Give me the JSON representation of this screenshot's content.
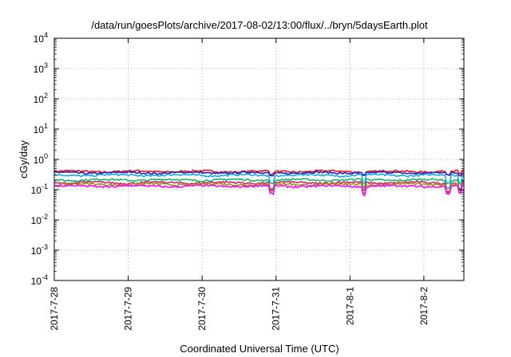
{
  "chart_data": {
    "type": "line",
    "title": "/data/run/goesPlots/archive/2017-08-02/13:00/flux/../bryn/5daysEarth.plot",
    "xlabel": "Coordinated Universal Time (UTC)",
    "ylabel": "cGy/day",
    "yscale": "log",
    "ylim": [
      0.0001,
      10000
    ],
    "y_ticks": [
      {
        "value": 0.0001,
        "base": "10",
        "exp": "-4"
      },
      {
        "value": 0.001,
        "base": "10",
        "exp": "-3"
      },
      {
        "value": 0.01,
        "base": "10",
        "exp": "-2"
      },
      {
        "value": 0.1,
        "base": "10",
        "exp": "-1"
      },
      {
        "value": 1,
        "base": "10",
        "exp": "0"
      },
      {
        "value": 10,
        "base": "10",
        "exp": "1"
      },
      {
        "value": 100,
        "base": "10",
        "exp": "2"
      },
      {
        "value": 1000,
        "base": "10",
        "exp": "3"
      },
      {
        "value": 10000,
        "base": "10",
        "exp": "4"
      }
    ],
    "xlim": [
      "2017-07-28",
      "2017-08-02 13:00"
    ],
    "x_ticks": [
      "2017-7-28",
      "2017-7-29",
      "2017-7-30",
      "2017-7-31",
      "2017-8-1",
      "2017-8-2"
    ],
    "grid": true,
    "series": [
      {
        "color": "#ee1111",
        "level": 0.4
      },
      {
        "color": "#2222cc",
        "level": 0.36
      },
      {
        "color": "#11aaee",
        "level": 0.3
      },
      {
        "color": "#11bb66",
        "level": 0.21
      },
      {
        "color": "#cc2277",
        "level": 0.17
      },
      {
        "color": "#9a9a00",
        "level": 0.15
      },
      {
        "color": "#ff00ff",
        "level": 0.13
      }
    ]
  }
}
